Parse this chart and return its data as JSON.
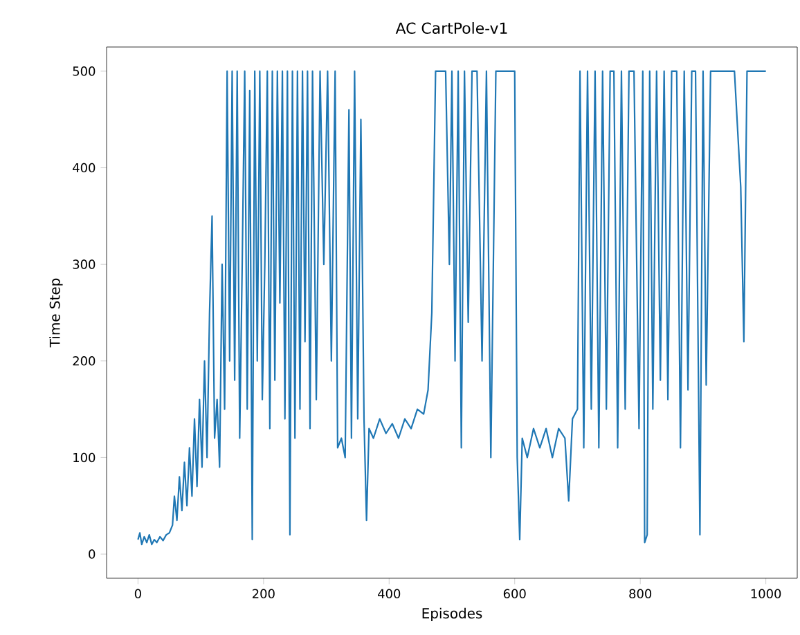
{
  "chart_data": {
    "type": "line",
    "title": "AC CartPole-v1",
    "xlabel": "Episodes",
    "ylabel": "Time Step",
    "xlim": [
      -50,
      1050
    ],
    "ylim": [
      -25,
      525
    ],
    "xticks": [
      0,
      200,
      400,
      600,
      800,
      1000
    ],
    "yticks": [
      0,
      100,
      200,
      300,
      400,
      500
    ],
    "grid": false,
    "series": [
      {
        "color": "#1f77b4",
        "x": [
          0,
          3,
          6,
          10,
          14,
          18,
          22,
          26,
          30,
          35,
          40,
          45,
          50,
          55,
          58,
          62,
          66,
          70,
          74,
          78,
          82,
          86,
          90,
          94,
          98,
          102,
          106,
          110,
          114,
          118,
          122,
          126,
          130,
          134,
          138,
          142,
          146,
          150,
          154,
          158,
          162,
          166,
          170,
          174,
          178,
          182,
          186,
          190,
          194,
          198,
          202,
          206,
          210,
          214,
          218,
          222,
          226,
          230,
          234,
          238,
          242,
          246,
          250,
          254,
          258,
          262,
          266,
          270,
          274,
          278,
          284,
          290,
          296,
          302,
          308,
          314,
          318,
          324,
          330,
          336,
          340,
          345,
          350,
          355,
          360,
          364,
          368,
          375,
          385,
          395,
          405,
          415,
          425,
          435,
          445,
          455,
          462,
          468,
          474,
          480,
          490,
          496,
          500,
          505,
          510,
          515,
          520,
          526,
          532,
          540,
          548,
          555,
          562,
          570,
          580,
          590,
          600,
          604,
          608,
          612,
          620,
          630,
          640,
          650,
          660,
          670,
          680,
          686,
          692,
          700,
          704,
          710,
          716,
          722,
          728,
          734,
          740,
          746,
          752,
          758,
          764,
          770,
          776,
          782,
          790,
          798,
          804,
          807,
          811,
          815,
          820,
          826,
          832,
          838,
          844,
          850,
          858,
          864,
          870,
          876,
          882,
          888,
          895,
          900,
          905,
          912,
          920,
          935,
          950,
          960,
          965,
          970,
          985,
          1000
        ],
        "values": [
          15,
          22,
          10,
          18,
          12,
          20,
          10,
          15,
          12,
          18,
          14,
          20,
          22,
          30,
          60,
          35,
          80,
          45,
          95,
          50,
          110,
          60,
          140,
          70,
          160,
          90,
          200,
          100,
          250,
          350,
          120,
          160,
          90,
          300,
          150,
          500,
          200,
          500,
          180,
          500,
          120,
          300,
          500,
          150,
          480,
          15,
          500,
          200,
          500,
          160,
          300,
          500,
          130,
          500,
          180,
          500,
          260,
          500,
          140,
          500,
          20,
          500,
          120,
          500,
          150,
          500,
          220,
          500,
          130,
          500,
          160,
          500,
          300,
          500,
          200,
          500,
          110,
          120,
          100,
          460,
          120,
          500,
          140,
          450,
          140,
          35,
          130,
          120,
          140,
          125,
          135,
          120,
          140,
          130,
          150,
          145,
          170,
          250,
          500,
          500,
          500,
          300,
          500,
          200,
          500,
          110,
          500,
          240,
          500,
          500,
          200,
          500,
          100,
          500,
          500,
          500,
          500,
          100,
          15,
          120,
          100,
          130,
          110,
          130,
          100,
          130,
          120,
          55,
          140,
          150,
          500,
          110,
          500,
          150,
          500,
          110,
          500,
          150,
          500,
          500,
          110,
          500,
          150,
          500,
          500,
          130,
          500,
          12,
          20,
          500,
          150,
          500,
          180,
          500,
          160,
          500,
          500,
          110,
          500,
          170,
          500,
          500,
          20,
          500,
          175,
          500,
          500,
          500,
          500,
          380,
          220,
          500,
          500,
          500
        ]
      }
    ]
  }
}
